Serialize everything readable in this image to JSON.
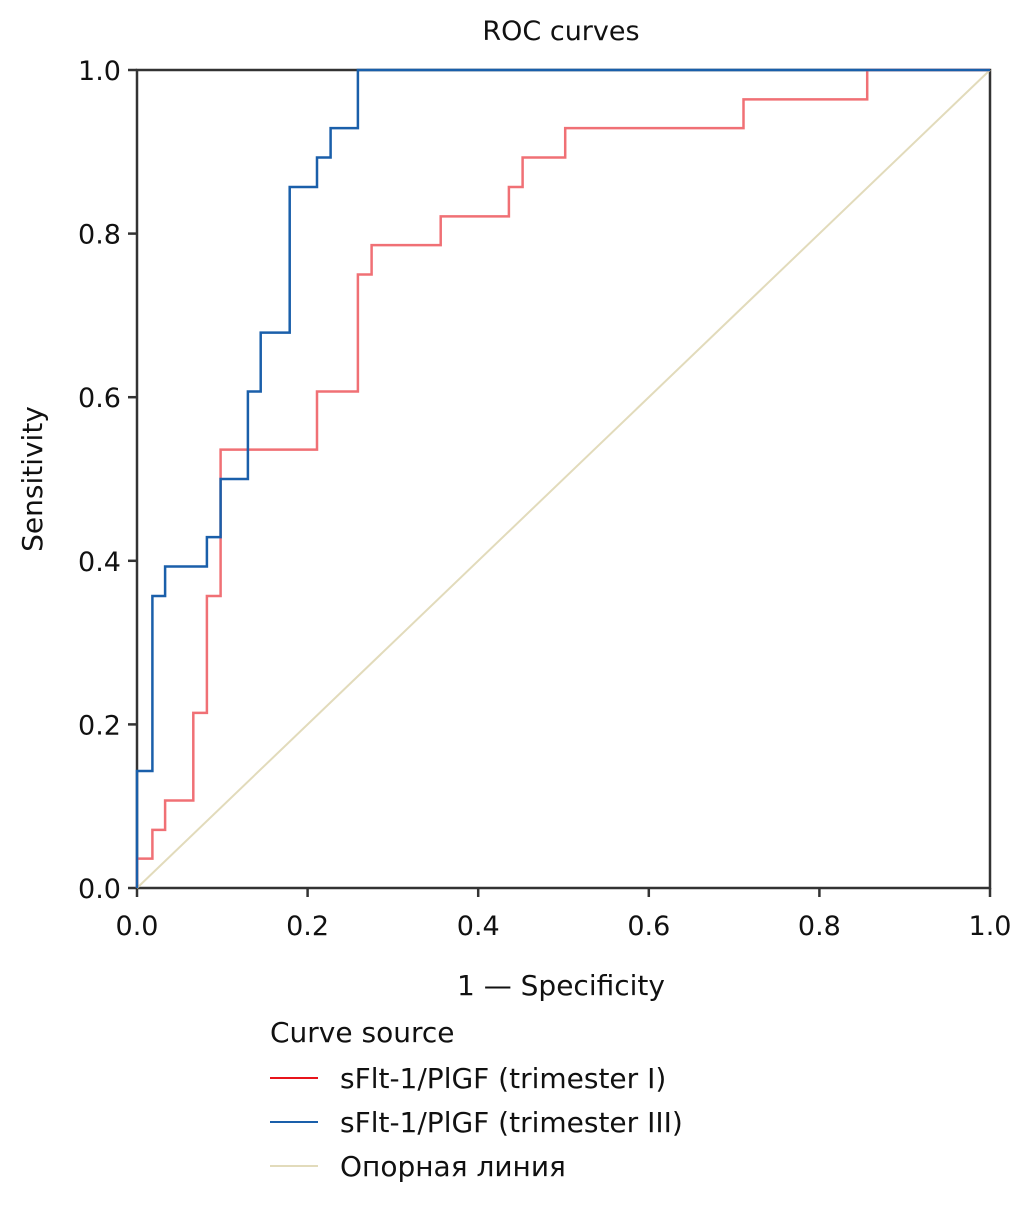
{
  "chart_data": {
    "type": "line",
    "title": "ROC curves",
    "xlabel": "1 — Specificity",
    "ylabel": "Sensitivity",
    "xlim": [
      0,
      1
    ],
    "ylim": [
      0,
      1
    ],
    "xticks": [
      "0.0",
      "0.2",
      "0.4",
      "0.6",
      "0.8",
      "1.0"
    ],
    "yticks": [
      "0.0",
      "0.2",
      "0.4",
      "0.6",
      "0.8",
      "1.0"
    ],
    "grid": false,
    "legend": {
      "title": "Curve source",
      "placement": "bottom",
      "entries": [
        {
          "label": "sFlt-1/PlGF (trimester I)",
          "color": "#e8141b"
        },
        {
          "label": "sFlt-1/PlGF (trimester III)",
          "color": "#1a5faa"
        },
        {
          "label": "Опорная линия",
          "color": "#e2dbbb"
        }
      ]
    },
    "series": [
      {
        "name": "sFlt-1/PlGF (trimester I)",
        "color": "#f07075",
        "step": true,
        "x": [
          0.0,
          0.0,
          0.018,
          0.018,
          0.033,
          0.033,
          0.066,
          0.066,
          0.082,
          0.082,
          0.098,
          0.098,
          0.211,
          0.211,
          0.259,
          0.259,
          0.275,
          0.275,
          0.356,
          0.356,
          0.436,
          0.436,
          0.452,
          0.452,
          0.502,
          0.502,
          0.711,
          0.711,
          0.856,
          0.856,
          1.0
        ],
        "y": [
          0.0,
          0.036,
          0.036,
          0.071,
          0.071,
          0.107,
          0.107,
          0.214,
          0.214,
          0.357,
          0.357,
          0.536,
          0.536,
          0.607,
          0.607,
          0.75,
          0.75,
          0.786,
          0.786,
          0.821,
          0.821,
          0.857,
          0.857,
          0.893,
          0.893,
          0.929,
          0.929,
          0.964,
          0.964,
          1.0,
          1.0
        ]
      },
      {
        "name": "sFlt-1/PlGF (trimester III)",
        "color": "#1a5faa",
        "step": true,
        "x": [
          0.0,
          0.0,
          0.018,
          0.018,
          0.033,
          0.033,
          0.082,
          0.082,
          0.098,
          0.098,
          0.13,
          0.13,
          0.145,
          0.145,
          0.179,
          0.179,
          0.211,
          0.211,
          0.227,
          0.227,
          0.259,
          0.259,
          1.0
        ],
        "y": [
          0.0,
          0.143,
          0.143,
          0.357,
          0.357,
          0.393,
          0.393,
          0.429,
          0.429,
          0.5,
          0.5,
          0.607,
          0.607,
          0.679,
          0.679,
          0.857,
          0.857,
          0.893,
          0.893,
          0.929,
          0.929,
          1.0,
          1.0
        ]
      },
      {
        "name": "Опорная линия",
        "color": "#e2dbbb",
        "step": false,
        "x": [
          0.0,
          1.0
        ],
        "y": [
          0.0,
          1.0
        ]
      }
    ]
  }
}
